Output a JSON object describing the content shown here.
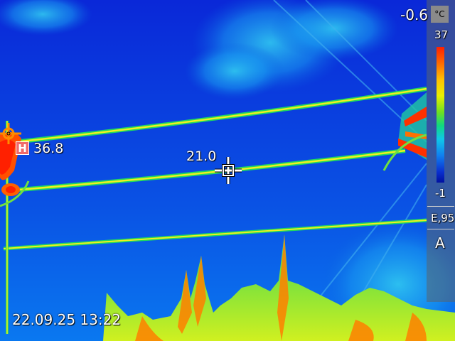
{
  "overlay": {
    "hot_spot_badge": "H",
    "hot_spot_value": "36.8",
    "spot_value": "21.0",
    "timestamp": "22.09.25 13:22",
    "top_reading": "-0.6"
  },
  "scale": {
    "unit": "°C",
    "max": "37",
    "min": "-1",
    "emissivity": "E,95",
    "mode": "A"
  },
  "colors": {
    "sky_top": "#0a28d8",
    "sky_bottom": "#0a6ae8",
    "cable_core": "#f0f020",
    "cable_edge": "#20d860",
    "hot": "#ff3000"
  }
}
